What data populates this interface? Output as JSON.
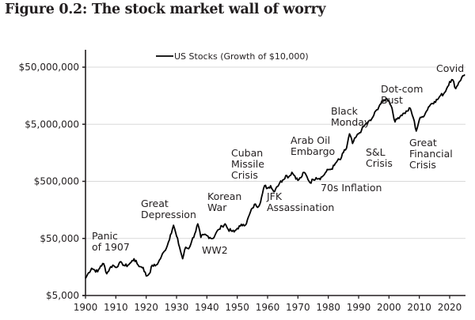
{
  "figure": {
    "title": "Figure 0.2: The stock market wall of worry"
  },
  "chart_data": {
    "type": "line",
    "title": "Figure 0.2: The stock market wall of worry",
    "xlabel": "",
    "ylabel": "",
    "yscale": "log",
    "xlim": [
      1900,
      2025
    ],
    "ylim": [
      5000,
      80000000
    ],
    "grid": "horizontal",
    "legend_position": "top-center",
    "x_ticks": [
      1900,
      1910,
      1920,
      1930,
      1940,
      1950,
      1960,
      1970,
      1980,
      1990,
      2000,
      2010,
      2020
    ],
    "x_tick_labels": [
      "1900",
      "1910",
      "1920",
      "1930",
      "1940",
      "1950",
      "1960",
      "1970",
      "1980",
      "1990",
      "2000",
      "2010",
      "2020"
    ],
    "y_ticks": [
      5000,
      50000,
      500000,
      5000000,
      50000000
    ],
    "y_tick_labels": [
      "$5,000",
      "$50,000",
      "$500,000",
      "$5,000,000",
      "$50,000,000"
    ],
    "series": [
      {
        "name": "US Stocks (Growth of $10,000)",
        "color": "#000000",
        "x": [
          1900,
          1901,
          1902,
          1903,
          1904,
          1905,
          1906,
          1907,
          1908,
          1909,
          1910,
          1911,
          1912,
          1913,
          1914,
          1915,
          1916,
          1917,
          1918,
          1919,
          1920,
          1921,
          1922,
          1923,
          1924,
          1925,
          1926,
          1927,
          1928,
          1929,
          1930,
          1931,
          1932,
          1933,
          1934,
          1935,
          1936,
          1937,
          1938,
          1939,
          1940,
          1941,
          1942,
          1943,
          1944,
          1945,
          1946,
          1947,
          1948,
          1949,
          1950,
          1951,
          1952,
          1953,
          1954,
          1955,
          1956,
          1957,
          1958,
          1959,
          1960,
          1961,
          1962,
          1963,
          1964,
          1965,
          1966,
          1967,
          1968,
          1969,
          1970,
          1971,
          1972,
          1973,
          1974,
          1975,
          1976,
          1977,
          1978,
          1979,
          1980,
          1981,
          1982,
          1983,
          1984,
          1985,
          1986,
          1987,
          1988,
          1989,
          1990,
          1991,
          1992,
          1993,
          1994,
          1995,
          1996,
          1997,
          1998,
          1999,
          2000,
          2001,
          2002,
          2003,
          2004,
          2005,
          2006,
          2007,
          2008,
          2009,
          2010,
          2011,
          2012,
          2013,
          2014,
          2015,
          2016,
          2017,
          2018,
          2019,
          2020,
          2021,
          2022,
          2023,
          2024,
          2025
        ],
        "values": [
          10000,
          12500,
          15000,
          14000,
          13000,
          16500,
          18000,
          12000,
          15000,
          17000,
          15500,
          18000,
          18500,
          16500,
          17000,
          19000,
          22000,
          18000,
          16000,
          15500,
          11000,
          12000,
          17000,
          16500,
          19000,
          24000,
          30000,
          38000,
          58000,
          85000,
          55000,
          35000,
          22000,
          35000,
          33000,
          45000,
          60000,
          90000,
          52000,
          58000,
          56000,
          52000,
          50000,
          62000,
          72000,
          82000,
          90000,
          72000,
          68000,
          65000,
          75000,
          82000,
          88000,
          90000,
          130000,
          170000,
          200000,
          180000,
          260000,
          420000,
          380000,
          420000,
          330000,
          400000,
          470000,
          530000,
          630000,
          600000,
          720000,
          620000,
          520000,
          580000,
          720000,
          600000,
          470000,
          540000,
          580000,
          560000,
          600000,
          700000,
          800000,
          820000,
          950000,
          1150000,
          1200000,
          1600000,
          1900000,
          3400000,
          2300000,
          2900000,
          3400000,
          4000000,
          4800000,
          5400000,
          5800000,
          7200000,
          9000000,
          11000000,
          12500000,
          14000000,
          13000000,
          9500000,
          5500000,
          6500000,
          7200000,
          7800000,
          8500000,
          9500000,
          6500000,
          3800000,
          6000000,
          6800000,
          7800000,
          10000000,
          11500000,
          12500000,
          13500000,
          16000000,
          17000000,
          21000000,
          28000000,
          30000000,
          21000000,
          27000000,
          33000000,
          37000000
        ]
      }
    ],
    "annotations": [
      {
        "lines": [
          "Panic",
          "of 1907"
        ],
        "x": 1907
      },
      {
        "lines": [
          "Great",
          "Depression"
        ],
        "x": 1929
      },
      {
        "lines": [
          "WW2"
        ],
        "x": 1942
      },
      {
        "lines": [
          "Korean",
          "War"
        ],
        "x": 1950
      },
      {
        "lines": [
          "Cuban",
          "Missile",
          "Crisis"
        ],
        "x": 1962
      },
      {
        "lines": [
          "JFK",
          "Assassination"
        ],
        "x": 1963
      },
      {
        "lines": [
          "Arab Oil",
          "Embargo"
        ],
        "x": 1973
      },
      {
        "lines": [
          "70s Inflation"
        ],
        "x": 1978
      },
      {
        "lines": [
          "Black",
          "Monday"
        ],
        "x": 1987
      },
      {
        "lines": [
          "S&L",
          "Crisis"
        ],
        "x": 1990
      },
      {
        "lines": [
          "Dot-com",
          "Bust"
        ],
        "x": 2000
      },
      {
        "lines": [
          "Great",
          "Financial",
          "Crisis"
        ],
        "x": 2008
      },
      {
        "lines": [
          "Covid"
        ],
        "x": 2020
      }
    ]
  }
}
